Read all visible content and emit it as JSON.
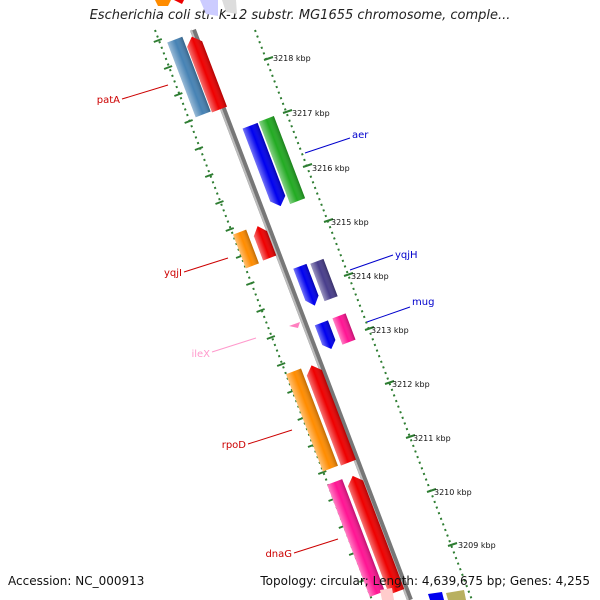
{
  "header": {
    "title": "Escherichia coli str. K-12 substr. MG1655 chromosome, comple..."
  },
  "footer": {
    "accession": "Accession: NC_000913",
    "stats": "Topology: circular; Length: 4,639,675 bp; Genes: 4,255"
  },
  "ruler": {
    "ticks": [
      "3218 kbp",
      "3217 kbp",
      "3216 kbp",
      "3215 kbp",
      "3214 kbp",
      "3213 kbp",
      "3212 kbp",
      "3211 kbp",
      "3210 kbp",
      "3209 kbp"
    ]
  },
  "genes": [
    {
      "name": "patA",
      "color": "#cc0000"
    },
    {
      "name": "aer",
      "color": "#0000cc"
    },
    {
      "name": "yqjH",
      "color": "#0000cc"
    },
    {
      "name": "yqjI",
      "color": "#cc0000"
    },
    {
      "name": "mug",
      "color": "#0000cc"
    },
    {
      "name": "ileX",
      "color": "#ff99cc"
    },
    {
      "name": "rpoD",
      "color": "#cc0000"
    },
    {
      "name": "dnaG",
      "color": "#cc0000"
    }
  ]
}
